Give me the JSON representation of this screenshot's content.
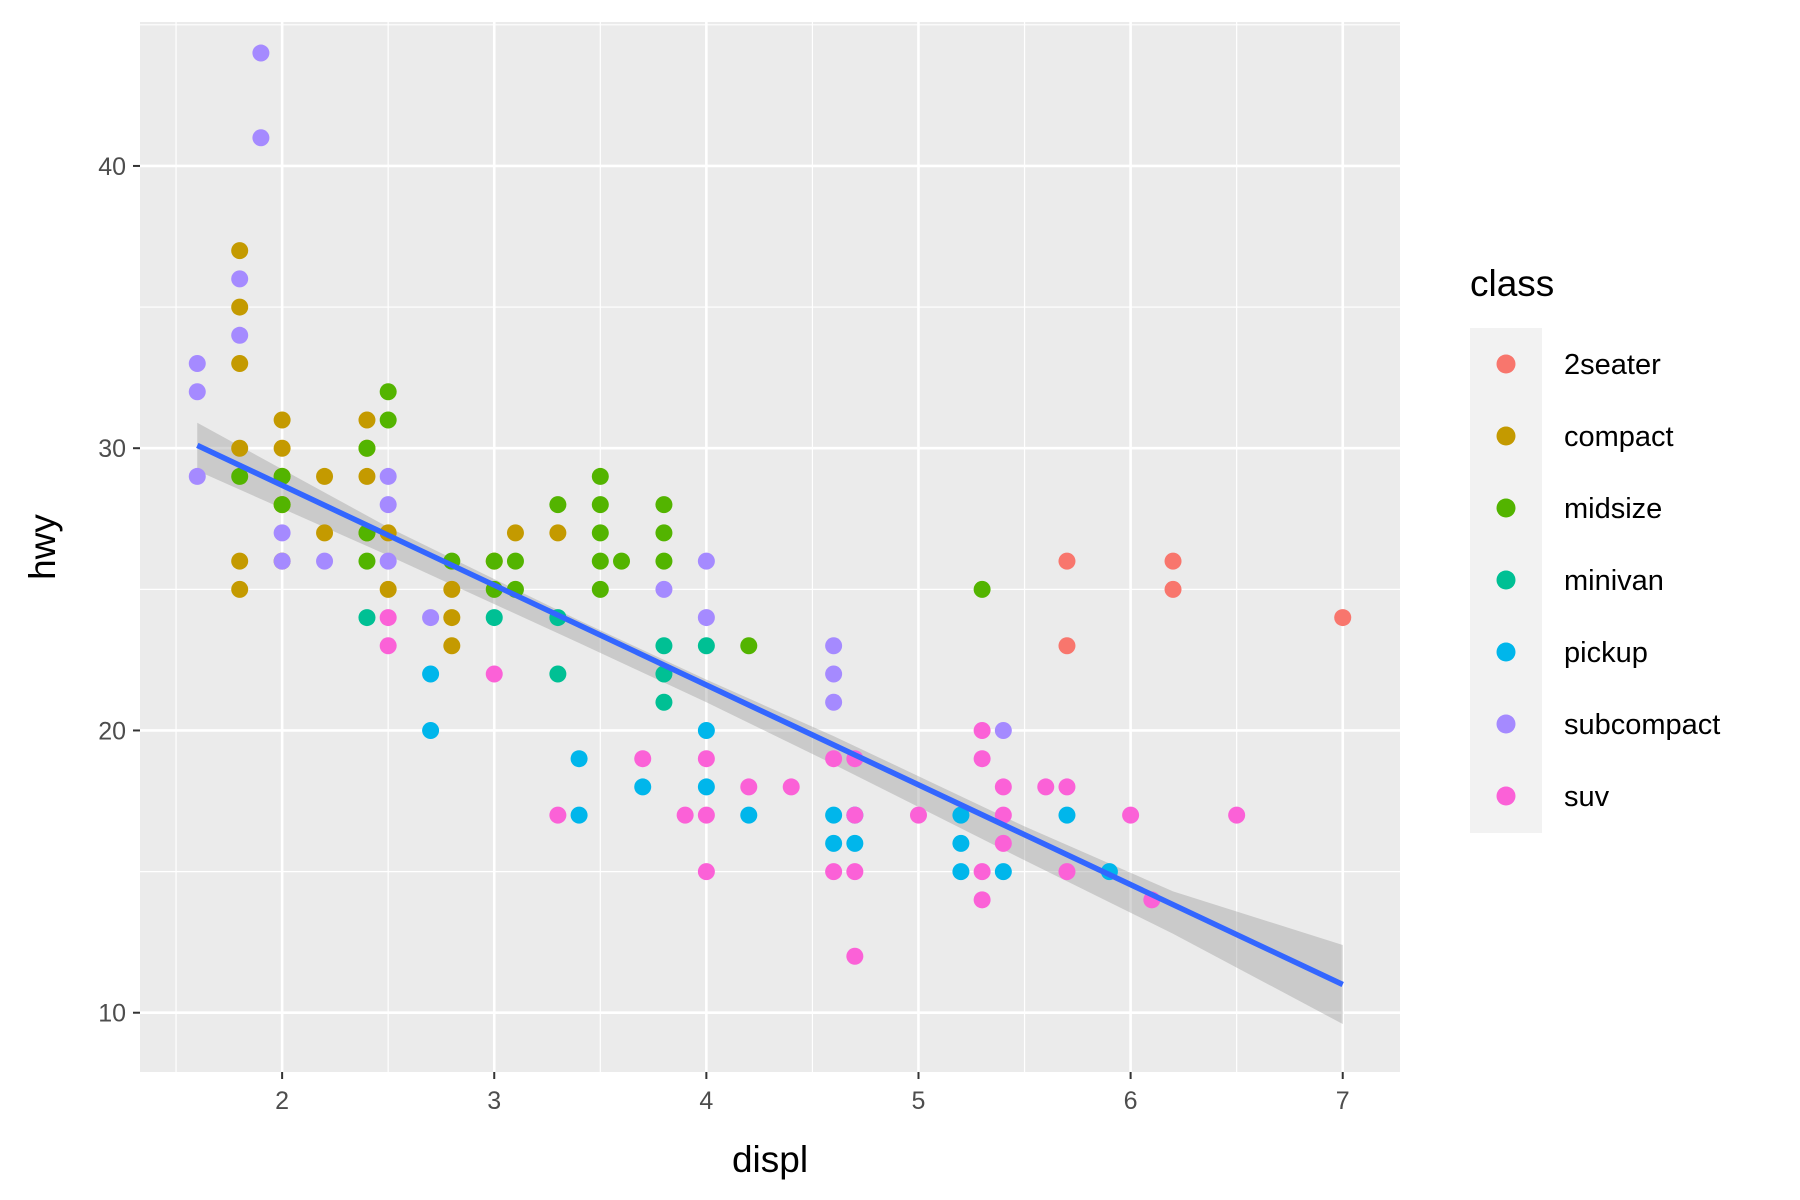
{
  "chart_data": {
    "type": "scatter",
    "title": "",
    "xlabel": "displ",
    "ylabel": "hwy",
    "xlim": [
      1.33,
      7.27
    ],
    "ylim": [
      7.9,
      45.1
    ],
    "x_ticks": [
      2,
      3,
      4,
      5,
      6,
      7
    ],
    "y_ticks": [
      10,
      20,
      30,
      40
    ],
    "grid": true,
    "legend": {
      "title": "class",
      "placement": "right",
      "entries": [
        {
          "name": "2seater",
          "color": "#F8766D"
        },
        {
          "name": "compact",
          "color": "#C49A00"
        },
        {
          "name": "midsize",
          "color": "#53B400"
        },
        {
          "name": "minivan",
          "color": "#00C094"
        },
        {
          "name": "pickup",
          "color": "#00B6EB"
        },
        {
          "name": "subcompact",
          "color": "#A58AFF"
        },
        {
          "name": "suv",
          "color": "#FB61D7"
        }
      ]
    },
    "series": [
      {
        "name": "2seater",
        "points": [
          [
            5.7,
            26
          ],
          [
            5.7,
            23
          ],
          [
            6.2,
            26
          ],
          [
            6.2,
            25
          ],
          [
            7.0,
            24
          ]
        ]
      },
      {
        "name": "compact",
        "points": [
          [
            1.8,
            37
          ],
          [
            1.8,
            35
          ],
          [
            1.8,
            33
          ],
          [
            1.8,
            30
          ],
          [
            1.8,
            26
          ],
          [
            1.8,
            25
          ],
          [
            2.0,
            31
          ],
          [
            2.0,
            30
          ],
          [
            2.0,
            29
          ],
          [
            2.0,
            28
          ],
          [
            2.0,
            26
          ],
          [
            2.2,
            29
          ],
          [
            2.2,
            27
          ],
          [
            2.4,
            31
          ],
          [
            2.4,
            30
          ],
          [
            2.4,
            29
          ],
          [
            2.4,
            27
          ],
          [
            2.5,
            27
          ],
          [
            2.5,
            25
          ],
          [
            2.8,
            25
          ],
          [
            2.8,
            24
          ],
          [
            2.8,
            23
          ],
          [
            3.0,
            26
          ],
          [
            3.1,
            27
          ],
          [
            3.3,
            27
          ]
        ]
      },
      {
        "name": "midsize",
        "points": [
          [
            1.8,
            29
          ],
          [
            2.0,
            29
          ],
          [
            2.0,
            28
          ],
          [
            2.4,
            30
          ],
          [
            2.4,
            27
          ],
          [
            2.4,
            26
          ],
          [
            2.5,
            32
          ],
          [
            2.5,
            31
          ],
          [
            2.8,
            26
          ],
          [
            3.0,
            26
          ],
          [
            3.0,
            25
          ],
          [
            3.1,
            26
          ],
          [
            3.1,
            25
          ],
          [
            3.3,
            28
          ],
          [
            3.5,
            29
          ],
          [
            3.5,
            28
          ],
          [
            3.5,
            27
          ],
          [
            3.5,
            26
          ],
          [
            3.5,
            25
          ],
          [
            3.6,
            26
          ],
          [
            3.8,
            28
          ],
          [
            3.8,
            27
          ],
          [
            3.8,
            26
          ],
          [
            4.2,
            23
          ],
          [
            5.3,
            25
          ]
        ]
      },
      {
        "name": "minivan",
        "points": [
          [
            2.4,
            24
          ],
          [
            3.0,
            24
          ],
          [
            3.3,
            24
          ],
          [
            3.3,
            22
          ],
          [
            3.8,
            23
          ],
          [
            3.8,
            22
          ],
          [
            3.8,
            21
          ],
          [
            4.0,
            23
          ]
        ]
      },
      {
        "name": "pickup",
        "points": [
          [
            2.7,
            22
          ],
          [
            2.7,
            20
          ],
          [
            3.4,
            19
          ],
          [
            3.4,
            17
          ],
          [
            3.7,
            18
          ],
          [
            4.0,
            20
          ],
          [
            4.0,
            18
          ],
          [
            4.2,
            17
          ],
          [
            4.6,
            17
          ],
          [
            4.6,
            16
          ],
          [
            4.7,
            17
          ],
          [
            4.7,
            16
          ],
          [
            5.2,
            17
          ],
          [
            5.2,
            16
          ],
          [
            5.2,
            15
          ],
          [
            5.4,
            15
          ],
          [
            5.7,
            17
          ],
          [
            5.9,
            15
          ]
        ]
      },
      {
        "name": "subcompact",
        "points": [
          [
            1.6,
            33
          ],
          [
            1.6,
            32
          ],
          [
            1.6,
            29
          ],
          [
            1.8,
            36
          ],
          [
            1.8,
            34
          ],
          [
            1.9,
            44
          ],
          [
            1.9,
            41
          ],
          [
            2.0,
            27
          ],
          [
            2.0,
            26
          ],
          [
            2.2,
            26
          ],
          [
            2.5,
            29
          ],
          [
            2.5,
            28
          ],
          [
            2.5,
            26
          ],
          [
            2.7,
            24
          ],
          [
            3.8,
            25
          ],
          [
            4.0,
            26
          ],
          [
            4.0,
            24
          ],
          [
            4.6,
            23
          ],
          [
            4.6,
            22
          ],
          [
            4.6,
            21
          ],
          [
            5.4,
            20
          ]
        ]
      },
      {
        "name": "suv",
        "points": [
          [
            2.5,
            24
          ],
          [
            2.5,
            23
          ],
          [
            3.0,
            22
          ],
          [
            3.3,
            17
          ],
          [
            3.7,
            19
          ],
          [
            3.9,
            17
          ],
          [
            4.0,
            19
          ],
          [
            4.0,
            17
          ],
          [
            4.0,
            15
          ],
          [
            4.2,
            18
          ],
          [
            4.4,
            18
          ],
          [
            4.6,
            19
          ],
          [
            4.6,
            15
          ],
          [
            4.7,
            19
          ],
          [
            4.7,
            17
          ],
          [
            4.7,
            15
          ],
          [
            4.7,
            12
          ],
          [
            5.0,
            17
          ],
          [
            5.3,
            20
          ],
          [
            5.3,
            19
          ],
          [
            5.3,
            15
          ],
          [
            5.3,
            14
          ],
          [
            5.4,
            18
          ],
          [
            5.4,
            17
          ],
          [
            5.4,
            16
          ],
          [
            5.6,
            18
          ],
          [
            5.7,
            18
          ],
          [
            5.7,
            15
          ],
          [
            6.0,
            17
          ],
          [
            6.1,
            14
          ],
          [
            6.5,
            17
          ]
        ]
      }
    ],
    "smooth": {
      "method": "lm",
      "color": "#3366FF",
      "band_color": "#999999",
      "fit": [
        [
          1.6,
          30.1
        ],
        [
          7.0,
          11.0
        ]
      ],
      "band_upper": [
        [
          1.6,
          30.9
        ],
        [
          2.5,
          27.2
        ],
        [
          3.4,
          23.9
        ],
        [
          4.0,
          21.8
        ],
        [
          4.6,
          19.8
        ],
        [
          5.5,
          16.6
        ],
        [
          6.2,
          14.3
        ],
        [
          7.0,
          12.4
        ]
      ],
      "band_lower": [
        [
          1.6,
          29.2
        ],
        [
          2.5,
          26.2
        ],
        [
          3.4,
          23.1
        ],
        [
          4.0,
          21.0
        ],
        [
          4.6,
          18.8
        ],
        [
          5.5,
          15.4
        ],
        [
          6.2,
          12.8
        ],
        [
          7.0,
          9.6
        ]
      ]
    }
  }
}
